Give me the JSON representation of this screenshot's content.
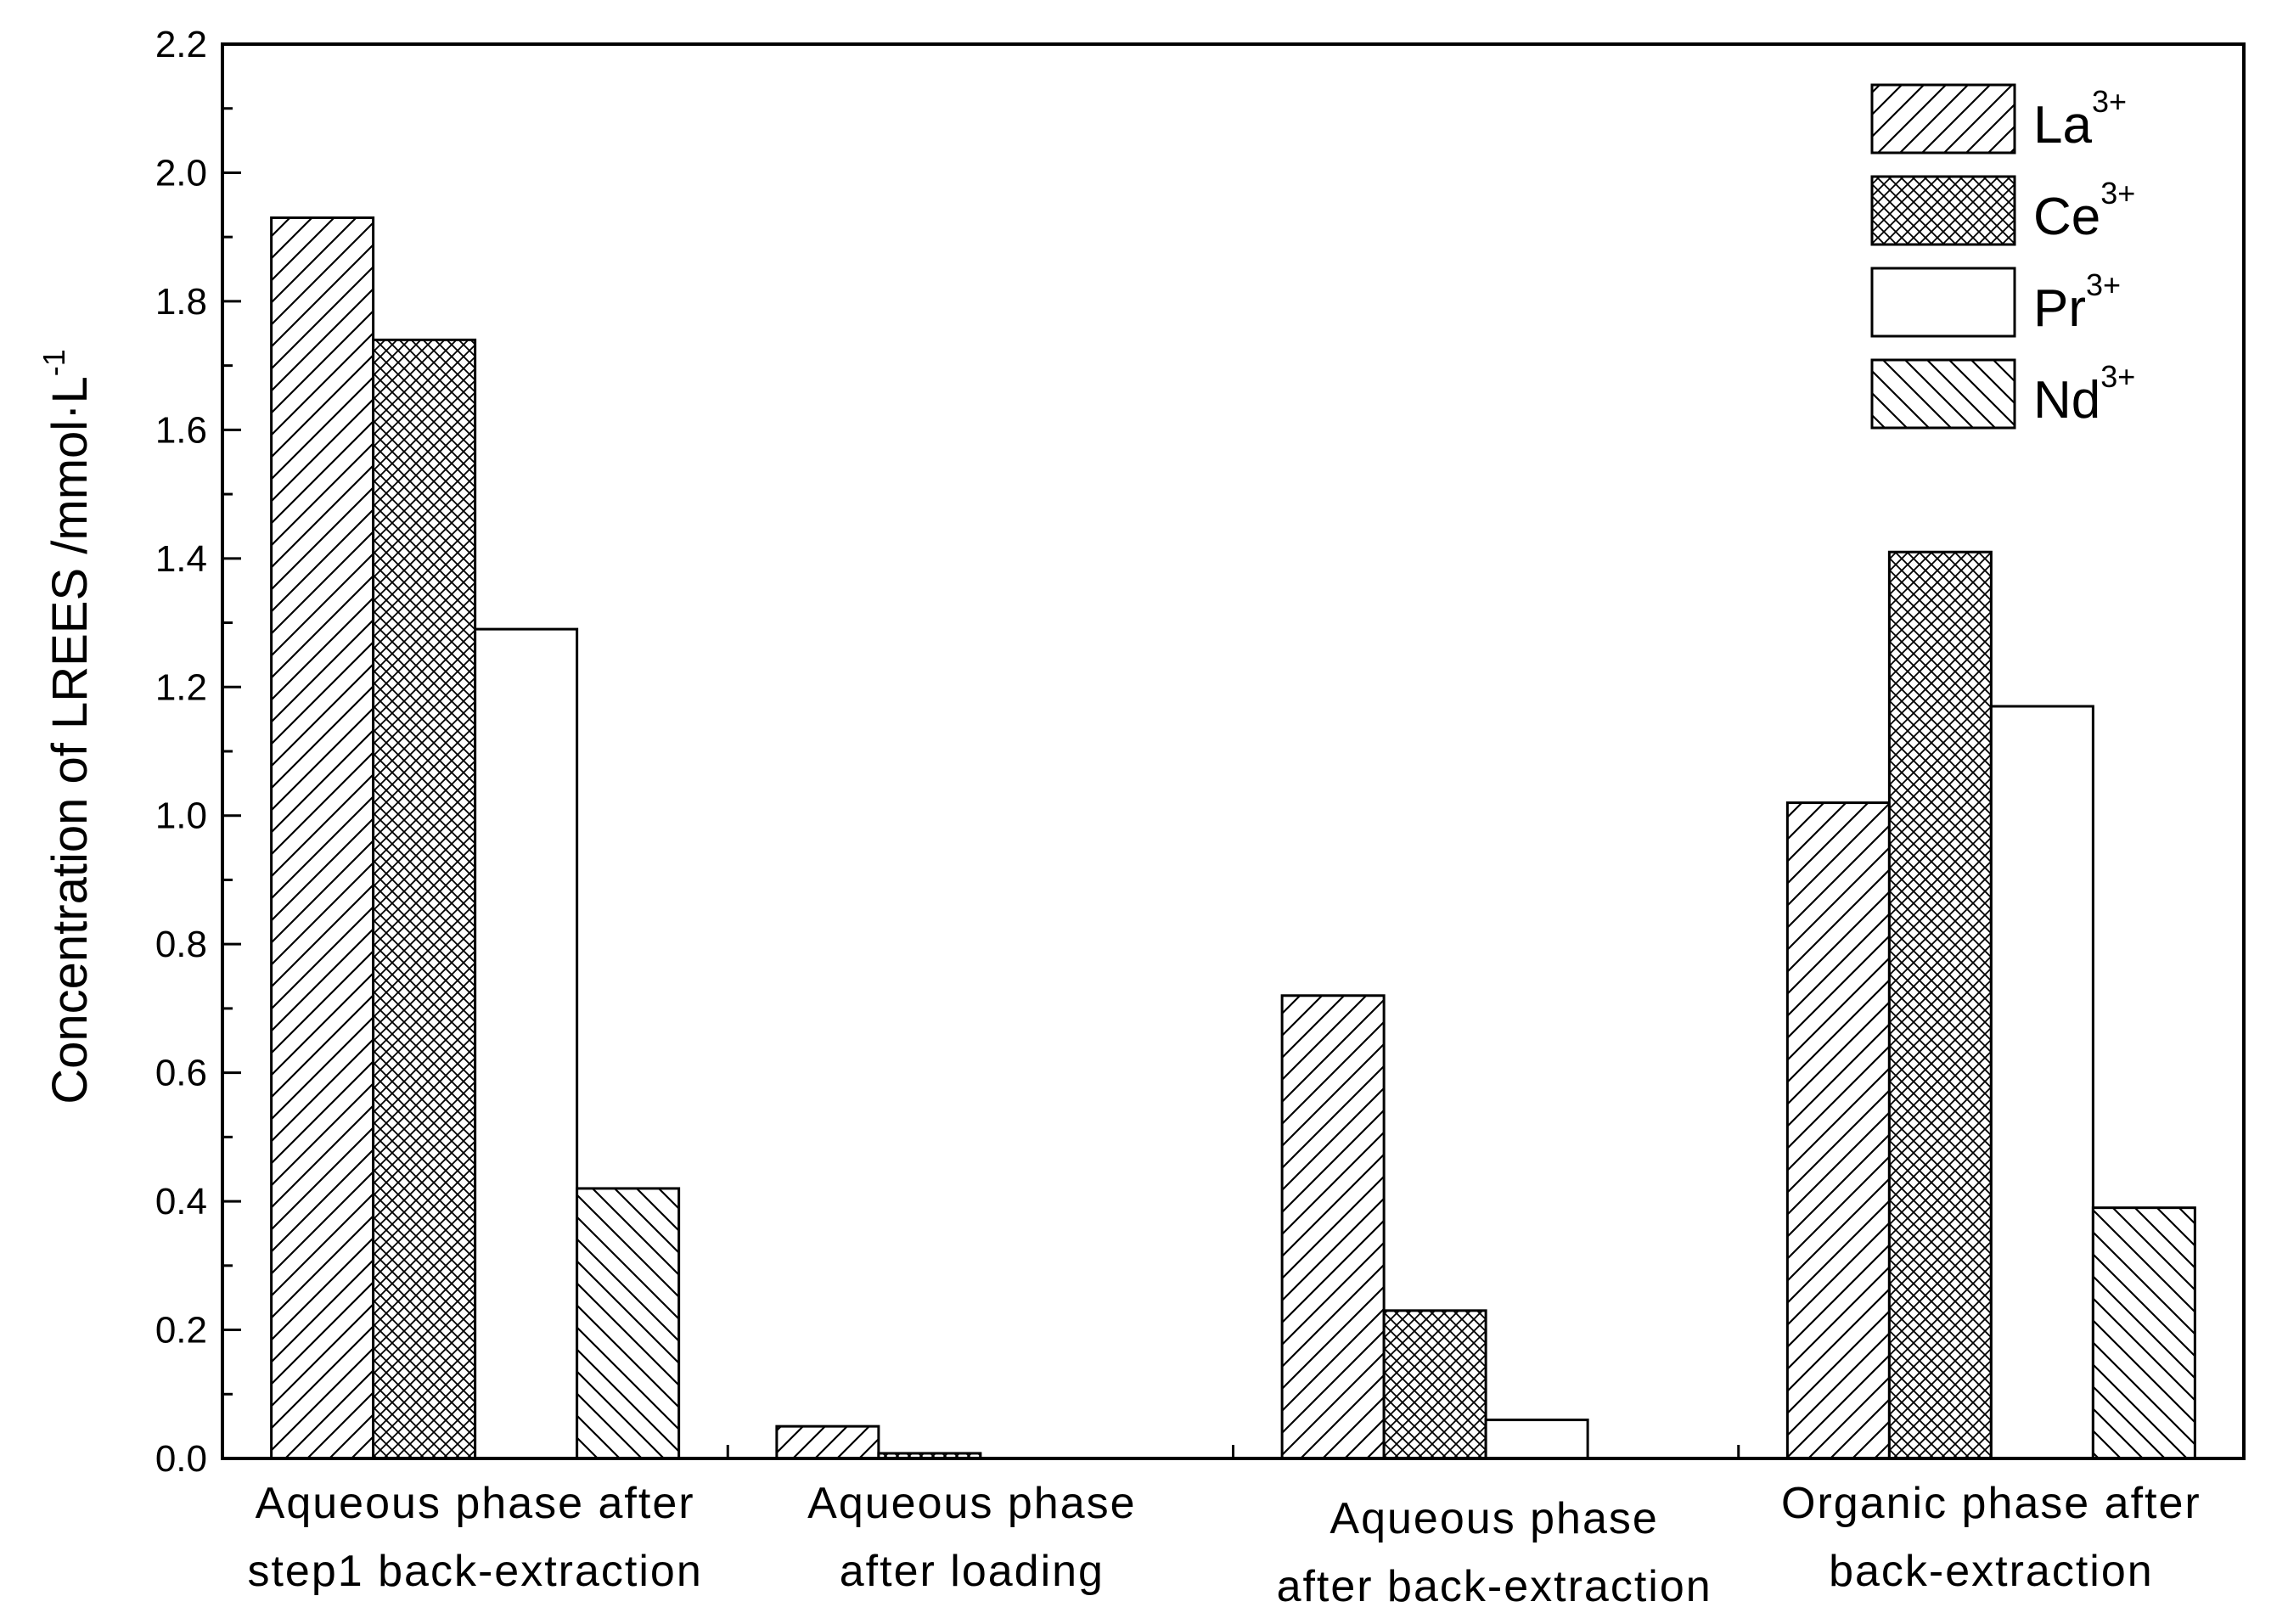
{
  "chart_data": {
    "type": "bar",
    "title": "",
    "xlabel": "",
    "ylabel": "Concentration of LREES /mmol·L",
    "ylabel_sup": "-1",
    "ylim": [
      0,
      2.2
    ],
    "yticks": [
      "0.0",
      "0.2",
      "0.4",
      "0.6",
      "0.8",
      "1.0",
      "1.2",
      "1.4",
      "1.6",
      "1.8",
      "2.0",
      "2.2"
    ],
    "categories": [
      [
        "Aqueous phase after",
        "step1 back-extraction"
      ],
      [
        "Aqueous phase",
        "after loading"
      ],
      [
        "Aqueous phase",
        "after back-extraction"
      ],
      [
        "Organic phase after",
        "back-extraction"
      ]
    ],
    "series": [
      {
        "name": "La",
        "sup": "3+",
        "pattern": "diag-up",
        "values": [
          1.93,
          0.05,
          0.72,
          1.02
        ]
      },
      {
        "name": "Ce",
        "sup": "3+",
        "pattern": "cross-dense",
        "values": [
          1.74,
          0.008,
          0.23,
          1.41
        ]
      },
      {
        "name": "Pr",
        "sup": "3+",
        "pattern": "none",
        "values": [
          1.29,
          0.0,
          0.06,
          1.17
        ]
      },
      {
        "name": "Nd",
        "sup": "3+",
        "pattern": "diag-down",
        "values": [
          0.42,
          0.0,
          0.0,
          0.39
        ]
      }
    ],
    "legend_position": "top-right",
    "grid": false
  }
}
